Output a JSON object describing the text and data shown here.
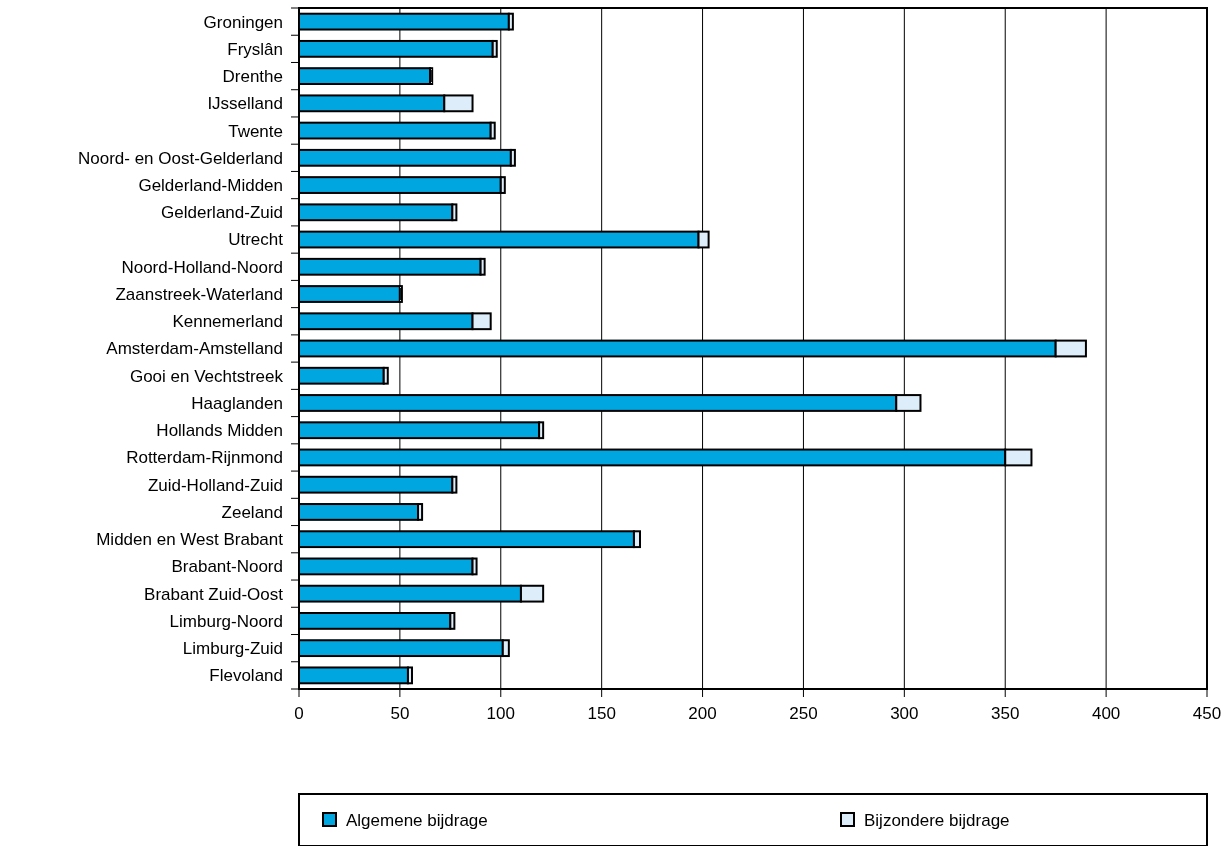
{
  "chart_data": {
    "type": "bar",
    "orientation": "horizontal",
    "stacked": true,
    "categories": [
      "Groningen",
      "Fryslân",
      "Drenthe",
      "IJsselland",
      "Twente",
      "Noord- en Oost-Gelderland",
      "Gelderland-Midden",
      "Gelderland-Zuid",
      "Utrecht",
      "Noord-Holland-Noord",
      "Zaanstreek-Waterland",
      "Kennemerland",
      "Amsterdam-Amstelland",
      "Gooi en Vechtstreek",
      "Haaglanden",
      "Hollands Midden",
      "Rotterdam-Rijnmond",
      "Zuid-Holland-Zuid",
      "Zeeland",
      "Midden en West Brabant",
      "Brabant-Noord",
      "Brabant Zuid-Oost",
      "Limburg-Noord",
      "Limburg-Zuid",
      "Flevoland"
    ],
    "series": [
      {
        "name": "Algemene bijdrage",
        "color": "#00a6e0",
        "values": [
          104,
          96,
          65,
          72,
          95,
          105,
          100,
          76,
          198,
          90,
          50,
          86,
          375,
          42,
          296,
          119,
          350,
          76,
          59,
          166,
          86,
          110,
          75,
          101,
          54
        ]
      },
      {
        "name": "Bijzondere bijdrage",
        "color": "#ddeefa",
        "values": [
          2,
          2,
          1,
          14,
          2,
          2,
          2,
          2,
          5,
          2,
          1,
          9,
          15,
          2,
          12,
          2,
          13,
          2,
          2,
          3,
          2,
          11,
          2,
          3,
          2
        ]
      }
    ],
    "xlim": [
      0,
      450
    ],
    "xticks": [
      0,
      50,
      100,
      150,
      200,
      250,
      300,
      350,
      400,
      450
    ],
    "grid": "x",
    "legend": "bottom"
  }
}
